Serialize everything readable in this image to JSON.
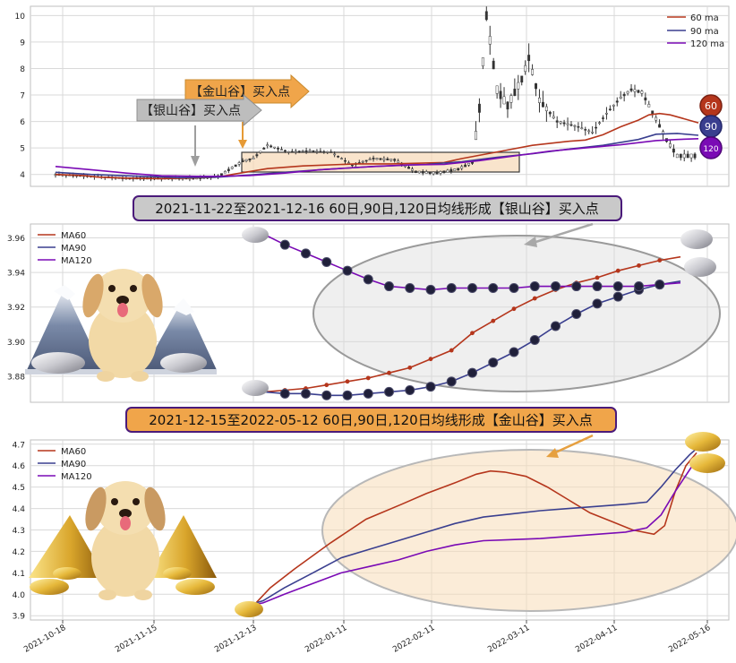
{
  "chart_data": [
    {
      "type": "line",
      "name": "price-panel",
      "yticks": [
        4,
        5,
        6,
        7,
        8,
        9,
        10
      ],
      "ylim": [
        3.55,
        10.35
      ],
      "legend": [
        "60 ma",
        "90 ma",
        "120 ma"
      ],
      "colors": {
        "ma60": "#b5361c",
        "ma90": "#3a3f8f",
        "ma120": "#7a0ab5"
      },
      "arrows": {
        "silver": "【银山谷】买入点",
        "gold": "【金山谷】买入点"
      },
      "badges": [
        "60",
        "90",
        "120"
      ],
      "ma60": [
        [
          0,
          4.0
        ],
        [
          8,
          3.96
        ],
        [
          12,
          3.9
        ],
        [
          20,
          3.86
        ],
        [
          30,
          3.84
        ],
        [
          42,
          3.88
        ],
        [
          46,
          3.9
        ],
        [
          50,
          4.0
        ],
        [
          60,
          4.22
        ],
        [
          70,
          4.32
        ],
        [
          85,
          4.4
        ],
        [
          95,
          4.4
        ],
        [
          110,
          4.45
        ],
        [
          115,
          4.6
        ],
        [
          125,
          4.85
        ],
        [
          135,
          5.1
        ],
        [
          145,
          5.25
        ],
        [
          150,
          5.3
        ],
        [
          155,
          5.5
        ],
        [
          160,
          5.8
        ],
        [
          165,
          6.05
        ],
        [
          168,
          6.25
        ],
        [
          171,
          6.3
        ],
        [
          174,
          6.25
        ],
        [
          178,
          6.1
        ],
        [
          182,
          5.95
        ]
      ],
      "ma90": [
        [
          0,
          4.08
        ],
        [
          10,
          4.0
        ],
        [
          20,
          3.95
        ],
        [
          35,
          3.88
        ],
        [
          46,
          3.9
        ],
        [
          55,
          3.98
        ],
        [
          65,
          4.08
        ],
        [
          75,
          4.18
        ],
        [
          90,
          4.3
        ],
        [
          105,
          4.38
        ],
        [
          115,
          4.48
        ],
        [
          125,
          4.65
        ],
        [
          135,
          4.78
        ],
        [
          145,
          4.95
        ],
        [
          155,
          5.1
        ],
        [
          165,
          5.32
        ],
        [
          170,
          5.52
        ],
        [
          176,
          5.55
        ],
        [
          182,
          5.48
        ]
      ],
      "ma120": [
        [
          0,
          4.3
        ],
        [
          10,
          4.18
        ],
        [
          20,
          4.05
        ],
        [
          30,
          3.95
        ],
        [
          40,
          3.93
        ],
        [
          46,
          3.93
        ],
        [
          55,
          3.96
        ],
        [
          65,
          4.05
        ],
        [
          75,
          4.18
        ],
        [
          90,
          4.3
        ],
        [
          100,
          4.36
        ],
        [
          110,
          4.38
        ],
        [
          120,
          4.52
        ],
        [
          130,
          4.7
        ],
        [
          140,
          4.88
        ],
        [
          150,
          5.0
        ],
        [
          160,
          5.12
        ],
        [
          170,
          5.28
        ],
        [
          176,
          5.32
        ],
        [
          182,
          5.35
        ]
      ],
      "price": [
        [
          0,
          4.0
        ],
        [
          20,
          3.85
        ],
        [
          40,
          3.86
        ],
        [
          46,
          3.92
        ],
        [
          50,
          4.25
        ],
        [
          53,
          4.5
        ],
        [
          56,
          4.6
        ],
        [
          60,
          5.1
        ],
        [
          66,
          4.85
        ],
        [
          72,
          4.9
        ],
        [
          78,
          4.85
        ],
        [
          84,
          4.35
        ],
        [
          90,
          4.6
        ],
        [
          96,
          4.55
        ],
        [
          102,
          4.1
        ],
        [
          108,
          4.05
        ],
        [
          114,
          4.2
        ],
        [
          118,
          4.45
        ],
        [
          120,
          6.5
        ],
        [
          122,
          10.0
        ],
        [
          125,
          7.2
        ],
        [
          128,
          6.6
        ],
        [
          132,
          7.6
        ],
        [
          134,
          8.4
        ],
        [
          137,
          6.8
        ],
        [
          142,
          6.0
        ],
        [
          148,
          5.8
        ],
        [
          152,
          5.6
        ],
        [
          156,
          6.3
        ],
        [
          160,
          6.9
        ],
        [
          163,
          7.2
        ],
        [
          166,
          7.1
        ],
        [
          170,
          6.1
        ],
        [
          173,
          5.3
        ],
        [
          176,
          4.7
        ],
        [
          179,
          4.7
        ],
        [
          182,
          4.7
        ]
      ]
    },
    {
      "type": "line",
      "name": "silver-panel",
      "title": "2021-11-22至2021-12-16 60日,90日,120日均线形成【银山谷】买入点",
      "yticks": [
        3.88,
        3.9,
        3.92,
        3.94,
        3.96
      ],
      "ylim": [
        3.865,
        3.968
      ],
      "legend": [
        "MA60",
        "MA90",
        "MA120"
      ],
      "ma60": [
        3.871,
        3.872,
        3.873,
        3.875,
        3.877,
        3.879,
        3.882,
        3.885,
        3.89,
        3.895,
        3.905,
        3.912,
        3.919,
        3.925,
        3.93,
        3.934,
        3.937,
        3.941,
        3.944,
        3.947,
        3.949
      ],
      "ma90": [
        3.871,
        3.87,
        3.87,
        3.869,
        3.869,
        3.87,
        3.871,
        3.872,
        3.874,
        3.877,
        3.882,
        3.888,
        3.894,
        3.901,
        3.909,
        3.916,
        3.922,
        3.926,
        3.93,
        3.933,
        3.935
      ],
      "ma120": [
        3.962,
        3.956,
        3.951,
        3.946,
        3.941,
        3.936,
        3.932,
        3.931,
        3.93,
        3.931,
        3.931,
        3.931,
        3.931,
        3.932,
        3.932,
        3.932,
        3.932,
        3.932,
        3.932,
        3.933,
        3.934
      ]
    },
    {
      "type": "line",
      "name": "gold-panel",
      "title": "2021-12-15至2022-05-12 60日,90日,120日均线形成【金山谷】买入点",
      "yticks": [
        3.9,
        4.0,
        4.1,
        4.2,
        4.3,
        4.4,
        4.5,
        4.6,
        4.7
      ],
      "ylim": [
        3.88,
        4.72
      ],
      "legend": [
        "MA60",
        "MA90",
        "MA120"
      ],
      "x_dates": [
        "2021-10-18",
        "2021-11-15",
        "2021-12-13",
        "2022-01-11",
        "2022-02-11",
        "2022-03-11",
        "2022-04-11",
        "2022-05-16"
      ],
      "ma60": [
        [
          0,
          3.94
        ],
        [
          4,
          3.96
        ],
        [
          8,
          4.03
        ],
        [
          15,
          4.12
        ],
        [
          25,
          4.24
        ],
        [
          35,
          4.35
        ],
        [
          45,
          4.42
        ],
        [
          52,
          4.47
        ],
        [
          60,
          4.52
        ],
        [
          66,
          4.56
        ],
        [
          70,
          4.575
        ],
        [
          74,
          4.57
        ],
        [
          80,
          4.55
        ],
        [
          86,
          4.5
        ],
        [
          92,
          4.44
        ],
        [
          98,
          4.38
        ],
        [
          104,
          4.34
        ],
        [
          110,
          4.3
        ],
        [
          116,
          4.28
        ],
        [
          119,
          4.32
        ],
        [
          122,
          4.48
        ],
        [
          125,
          4.6
        ],
        [
          128,
          4.66
        ]
      ],
      "ma90": [
        [
          0,
          3.94
        ],
        [
          6,
          3.97
        ],
        [
          12,
          4.03
        ],
        [
          20,
          4.1
        ],
        [
          28,
          4.17
        ],
        [
          36,
          4.21
        ],
        [
          44,
          4.25
        ],
        [
          52,
          4.29
        ],
        [
          60,
          4.33
        ],
        [
          68,
          4.36
        ],
        [
          76,
          4.375
        ],
        [
          84,
          4.39
        ],
        [
          92,
          4.4
        ],
        [
          100,
          4.41
        ],
        [
          108,
          4.42
        ],
        [
          114,
          4.43
        ],
        [
          118,
          4.5
        ],
        [
          122,
          4.58
        ],
        [
          126,
          4.65
        ],
        [
          128,
          4.68
        ]
      ],
      "ma120": [
        [
          0,
          3.94
        ],
        [
          6,
          3.96
        ],
        [
          12,
          4.0
        ],
        [
          20,
          4.05
        ],
        [
          28,
          4.1
        ],
        [
          36,
          4.13
        ],
        [
          44,
          4.16
        ],
        [
          52,
          4.2
        ],
        [
          60,
          4.23
        ],
        [
          68,
          4.25
        ],
        [
          76,
          4.255
        ],
        [
          84,
          4.26
        ],
        [
          92,
          4.27
        ],
        [
          100,
          4.28
        ],
        [
          108,
          4.29
        ],
        [
          114,
          4.31
        ],
        [
          118,
          4.37
        ],
        [
          122,
          4.48
        ],
        [
          126,
          4.58
        ],
        [
          128,
          4.63
        ]
      ]
    }
  ]
}
